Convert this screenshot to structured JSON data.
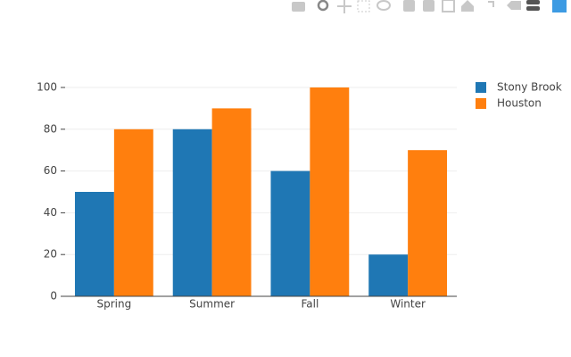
{
  "chart_data": {
    "type": "bar",
    "categories": [
      "Spring",
      "Summer",
      "Fall",
      "Winter"
    ],
    "series": [
      {
        "name": "Stony Brook",
        "color": "#1f77b4",
        "values": [
          50,
          80,
          60,
          20
        ]
      },
      {
        "name": "Houston",
        "color": "#ff7f0e",
        "values": [
          80,
          90,
          100,
          70
        ]
      }
    ],
    "ylim": [
      0,
      100
    ],
    "yticks": [
      0,
      20,
      40,
      60,
      80,
      100
    ],
    "grid": true,
    "legend": "right"
  }
}
